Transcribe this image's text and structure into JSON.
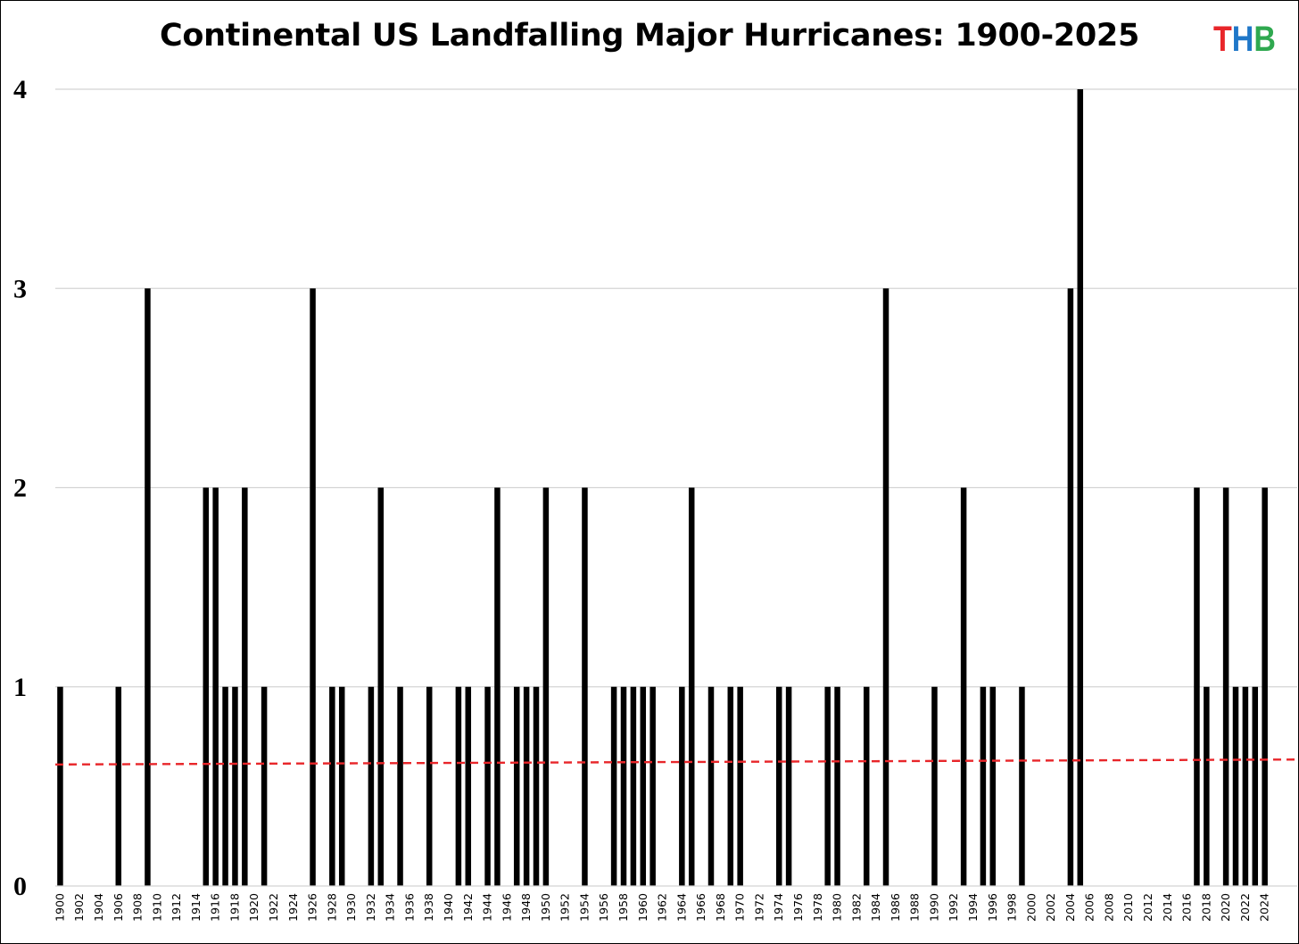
{
  "chart_data": {
    "type": "bar",
    "title": "Continental US Landfalling Major Hurricanes: 1900-2025",
    "xlabel": "",
    "ylabel": "",
    "ylim": [
      0,
      4
    ],
    "y_ticks": [
      0,
      1,
      2,
      3,
      4
    ],
    "grid": true,
    "bar_color": "#000000",
    "trendline": {
      "type": "linear",
      "style": "dashed",
      "color": "#e8262a",
      "start": 0.61,
      "end": 0.635
    },
    "categories": [
      1900,
      1901,
      1902,
      1903,
      1904,
      1905,
      1906,
      1907,
      1908,
      1909,
      1910,
      1911,
      1912,
      1913,
      1914,
      1915,
      1916,
      1917,
      1918,
      1919,
      1920,
      1921,
      1922,
      1923,
      1924,
      1925,
      1926,
      1927,
      1928,
      1929,
      1930,
      1931,
      1932,
      1933,
      1934,
      1935,
      1936,
      1937,
      1938,
      1939,
      1940,
      1941,
      1942,
      1943,
      1944,
      1945,
      1946,
      1947,
      1948,
      1949,
      1950,
      1951,
      1952,
      1953,
      1954,
      1955,
      1956,
      1957,
      1958,
      1959,
      1960,
      1961,
      1962,
      1963,
      1964,
      1965,
      1966,
      1967,
      1968,
      1969,
      1970,
      1971,
      1972,
      1973,
      1974,
      1975,
      1976,
      1977,
      1978,
      1979,
      1980,
      1981,
      1982,
      1983,
      1984,
      1985,
      1986,
      1987,
      1988,
      1989,
      1990,
      1991,
      1992,
      1993,
      1994,
      1995,
      1996,
      1997,
      1998,
      1999,
      2000,
      2001,
      2002,
      2003,
      2004,
      2005,
      2006,
      2007,
      2008,
      2009,
      2010,
      2011,
      2012,
      2013,
      2014,
      2015,
      2016,
      2017,
      2018,
      2019,
      2020,
      2021,
      2022,
      2023,
      2024,
      2025
    ],
    "values": [
      1,
      0,
      0,
      0,
      0,
      0,
      1,
      0,
      0,
      3,
      0,
      0,
      0,
      0,
      0,
      2,
      2,
      1,
      1,
      2,
      0,
      1,
      0,
      0,
      0,
      0,
      3,
      0,
      1,
      1,
      0,
      0,
      1,
      2,
      0,
      1,
      0,
      0,
      1,
      0,
      0,
      1,
      1,
      0,
      1,
      2,
      0,
      1,
      1,
      1,
      2,
      0,
      0,
      0,
      2,
      0,
      0,
      1,
      1,
      1,
      1,
      1,
      0,
      0,
      1,
      2,
      0,
      1,
      0,
      1,
      1,
      0,
      0,
      0,
      1,
      1,
      0,
      0,
      0,
      1,
      1,
      0,
      0,
      1,
      0,
      3,
      0,
      0,
      0,
      0,
      1,
      0,
      0,
      2,
      0,
      1,
      1,
      0,
      0,
      1,
      0,
      0,
      0,
      0,
      3,
      4,
      0,
      0,
      0,
      0,
      0,
      0,
      0,
      0,
      0,
      0,
      0,
      2,
      1,
      0,
      2,
      1,
      1,
      1,
      2,
      0
    ],
    "x_tick_labels": [
      "1900",
      "1902",
      "1904",
      "1906",
      "1908",
      "1910",
      "1912",
      "1914",
      "1916",
      "1918",
      "1920",
      "1922",
      "1924",
      "1926",
      "1928",
      "1930",
      "1932",
      "1934",
      "1936",
      "1938",
      "1940",
      "1942",
      "1944",
      "1946",
      "1948",
      "1950",
      "1952",
      "1954",
      "1956",
      "1958",
      "1960",
      "1962",
      "1964",
      "1966",
      "1968",
      "1970",
      "1972",
      "1974",
      "1976",
      "1978",
      "1980",
      "1982",
      "1984",
      "1986",
      "1988",
      "1990",
      "1992",
      "1994",
      "1996",
      "1998",
      "2000",
      "2002",
      "2004",
      "2006",
      "2008",
      "2010",
      "2012",
      "2014",
      "2016",
      "2018",
      "2020",
      "2022",
      "2024"
    ]
  },
  "logo": {
    "letters": [
      "T",
      "H",
      "B"
    ],
    "colors": [
      "#e8262a",
      "#1f77c8",
      "#2fa84f"
    ]
  }
}
